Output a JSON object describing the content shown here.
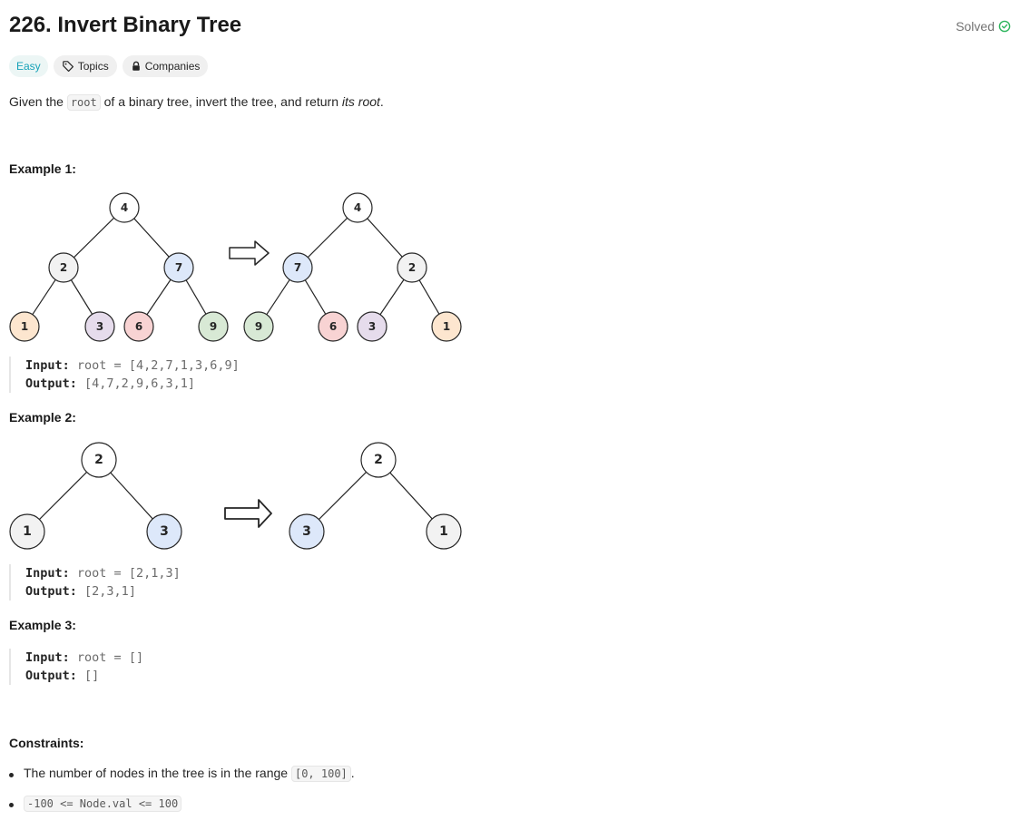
{
  "problem": {
    "title": "226. Invert Binary Tree",
    "status": "Solved",
    "difficulty": "Easy",
    "topics_label": "Topics",
    "companies_label": "Companies"
  },
  "description": {
    "before": "Given the ",
    "code": "root",
    "middle": " of a binary tree, invert the tree, and return ",
    "emphasis": "its root",
    "after": "."
  },
  "examples": [
    {
      "heading": "Example 1:",
      "input_label": "Input:",
      "input_value": "root = [4,2,7,1,3,6,9]",
      "output_label": "Output:",
      "output_value": "[4,7,2,9,6,3,1]",
      "tree_before": [
        {
          "value": "4",
          "color": "#ffffff"
        },
        {
          "value": "2",
          "color": "#f2f2f2"
        },
        {
          "value": "7",
          "color": "#dde8fa"
        },
        {
          "value": "1",
          "color": "#fde6cf"
        },
        {
          "value": "3",
          "color": "#e6dcec"
        },
        {
          "value": "6",
          "color": "#f8d3d3"
        },
        {
          "value": "9",
          "color": "#d8e9d5"
        }
      ],
      "tree_after": [
        {
          "value": "4",
          "color": "#ffffff"
        },
        {
          "value": "7",
          "color": "#dde8fa"
        },
        {
          "value": "2",
          "color": "#f2f2f2"
        },
        {
          "value": "9",
          "color": "#d8e9d5"
        },
        {
          "value": "6",
          "color": "#f8d3d3"
        },
        {
          "value": "3",
          "color": "#e6dcec"
        },
        {
          "value": "1",
          "color": "#fde6cf"
        }
      ]
    },
    {
      "heading": "Example 2:",
      "input_label": "Input:",
      "input_value": "root = [2,1,3]",
      "output_label": "Output:",
      "output_value": "[2,3,1]",
      "tree_before": [
        {
          "value": "2",
          "color": "#ffffff"
        },
        {
          "value": "1",
          "color": "#f2f2f2"
        },
        {
          "value": "3",
          "color": "#dde8fa"
        }
      ],
      "tree_after": [
        {
          "value": "2",
          "color": "#ffffff"
        },
        {
          "value": "3",
          "color": "#dde8fa"
        },
        {
          "value": "1",
          "color": "#f2f2f2"
        }
      ]
    },
    {
      "heading": "Example 3:",
      "input_label": "Input:",
      "input_value": "root = []",
      "output_label": "Output:",
      "output_value": "[]"
    }
  ],
  "constraints": {
    "heading": "Constraints:",
    "item1_text": "The number of nodes in the tree is in the range ",
    "item1_code": "[0, 100]",
    "item1_after": ".",
    "item2_code": "-100 <= Node.val <= 100"
  },
  "colors": {
    "easy": "#17a2b8",
    "solved_check": "#2db55d",
    "node_stroke": "#262626"
  }
}
